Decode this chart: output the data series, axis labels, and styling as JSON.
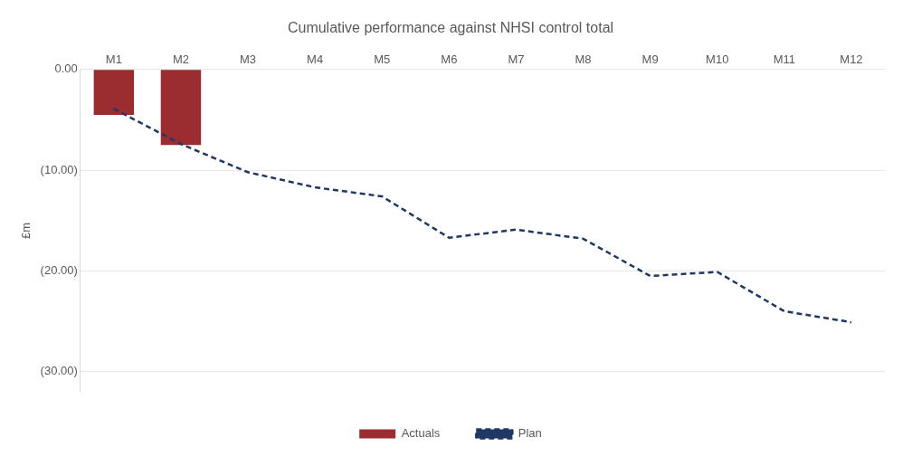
{
  "chart_data": {
    "type": "bar",
    "title": "Cumulative performance against NHSI control total",
    "ylabel": "£m",
    "categories": [
      "M1",
      "M2",
      "M3",
      "M4",
      "M5",
      "M6",
      "M7",
      "M8",
      "M9",
      "M10",
      "M11",
      "M12"
    ],
    "series": [
      {
        "name": "Actuals",
        "color": "#9b2d30",
        "values": [
          -4.5,
          -7.5,
          null,
          null,
          null,
          null,
          null,
          null,
          null,
          null,
          null,
          null
        ]
      },
      {
        "name": "Plan",
        "type": "line",
        "color": "#1f3864",
        "line_style": "dashed",
        "values": [
          -3.9,
          -7.4,
          -10.2,
          -11.7,
          -12.6,
          -16.7,
          -15.9,
          -16.8,
          -20.5,
          -20.1,
          -24.0,
          -25.1
        ]
      }
    ],
    "ylim": [
      -32,
      0
    ],
    "yticks": [
      {
        "value": 0,
        "label": "0.00"
      },
      {
        "value": -10,
        "label": "(10.00)"
      },
      {
        "value": -20,
        "label": "(20.00)"
      },
      {
        "value": -30,
        "label": "(30.00)"
      }
    ],
    "grid": "y",
    "legend": "bottom"
  }
}
